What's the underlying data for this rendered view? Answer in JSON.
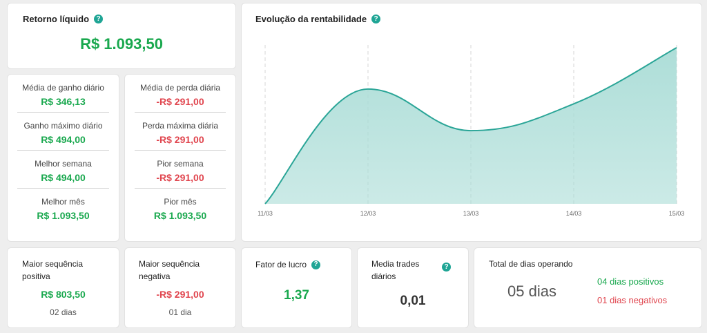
{
  "net_return": {
    "title": "Retorno líquido",
    "value": "R$ 1.093,50"
  },
  "gains": [
    {
      "label": "Média de ganho diário",
      "value": "R$ 346,13"
    },
    {
      "label": "Ganho máximo diário",
      "value": "R$ 494,00"
    },
    {
      "label": "Melhor semana",
      "value": "R$ 494,00"
    },
    {
      "label": "Melhor mês",
      "value": "R$ 1.093,50"
    }
  ],
  "losses": [
    {
      "label": "Média de perda diária",
      "value": "-R$ 291,00"
    },
    {
      "label": "Perda máxima diária",
      "value": "-R$ 291,00"
    },
    {
      "label": "Pior semana",
      "value": "-R$ 291,00"
    },
    {
      "label": "Pior mês",
      "value": "R$ 1.093,50"
    }
  ],
  "profitability": {
    "title": "Evolução da rentabilidade"
  },
  "chart_data": {
    "type": "area",
    "title": "Evolução da rentabilidade",
    "categories": [
      "11/03",
      "12/03",
      "13/03",
      "14/03",
      "15/03"
    ],
    "values": [
      0,
      803.5,
      512.5,
      700,
      1093.5
    ],
    "xlabel": "",
    "ylabel": "",
    "grid": "vertical dashed",
    "color": "#a9dcd6",
    "line_color": "#2aa597"
  },
  "positive_streak": {
    "label": "Maior sequência positiva",
    "value": "R$ 803,50",
    "days": "02 dias"
  },
  "negative_streak": {
    "label": "Maior sequência negativa",
    "value": "-R$ 291,00",
    "days": "01 dia"
  },
  "profit_factor": {
    "label": "Fator de lucro",
    "value": "1,37"
  },
  "daily_trades": {
    "label": "Media trades diários",
    "value": "0,01"
  },
  "operating_days": {
    "label": "Total de dias operando",
    "total": "05 dias",
    "positive": "04 dias positivos",
    "negative": "01 dias negativos"
  },
  "colors": {
    "green": "#19a84e",
    "red": "#e0444d",
    "accent": "#1fa595"
  }
}
